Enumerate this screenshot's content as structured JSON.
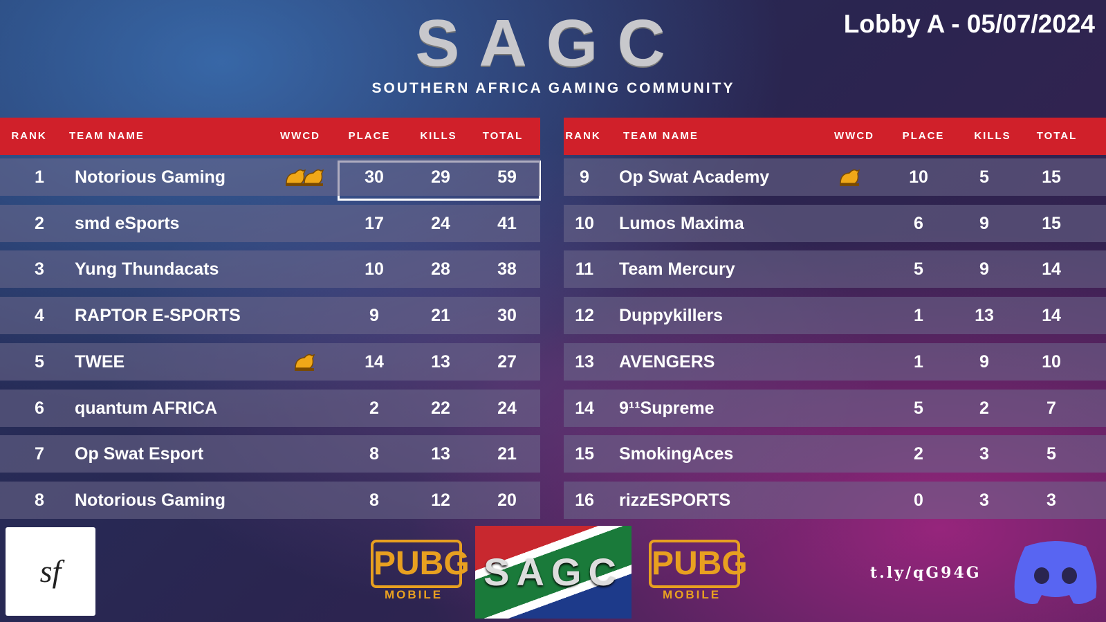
{
  "header": {
    "logo": "SAGC",
    "subtitle": "SOUTHERN AFRICA GAMING COMMUNITY",
    "lobby": "Lobby A - 05/07/2024"
  },
  "columns": [
    "RANK",
    "TEAM NAME",
    "WWCD",
    "PLACE",
    "KILLS",
    "TOTAL"
  ],
  "tables": [
    {
      "rows": [
        {
          "rank": 1,
          "team": "Notorious Gaming",
          "wwcd": 2,
          "place": 30,
          "kills": 29,
          "total": 59
        },
        {
          "rank": 2,
          "team": "smd eSports",
          "place": 17,
          "kills": 24,
          "total": 41
        },
        {
          "rank": 3,
          "team": "Yung Thundacats",
          "place": 10,
          "kills": 28,
          "total": 38
        },
        {
          "rank": 4,
          "team": "RAPTOR E-SPORTS",
          "place": 9,
          "kills": 21,
          "total": 30
        },
        {
          "rank": 5,
          "team": "TWEE",
          "wwcd": 1,
          "place": 14,
          "kills": 13,
          "total": 27
        },
        {
          "rank": 6,
          "team": "quantum AFRICA",
          "place": 2,
          "kills": 22,
          "total": 24
        },
        {
          "rank": 7,
          "team": "Op Swat Esport",
          "place": 8,
          "kills": 13,
          "total": 21
        },
        {
          "rank": 8,
          "team": "Notorious Gaming",
          "place": 8,
          "kills": 12,
          "total": 20
        }
      ]
    },
    {
      "rows": [
        {
          "rank": 9,
          "team": "Op Swat Academy",
          "wwcd": 1,
          "place": 10,
          "kills": 5,
          "total": 15
        },
        {
          "rank": 10,
          "team": "Lumos Maxima",
          "place": 6,
          "kills": 9,
          "total": 15
        },
        {
          "rank": 11,
          "team": "Team Mercury",
          "place": 5,
          "kills": 9,
          "total": 14
        },
        {
          "rank": 12,
          "team": "Duppykillers",
          "place": 1,
          "kills": 13,
          "total": 14
        },
        {
          "rank": 13,
          "team": "AVENGERS",
          "place": 1,
          "kills": 9,
          "total": 10
        },
        {
          "rank": 14,
          "team": "9¹¹Supreme",
          "place": 5,
          "kills": 2,
          "total": 7
        },
        {
          "rank": 15,
          "team": "SmokingAces",
          "place": 2,
          "kills": 3,
          "total": 5
        },
        {
          "rank": 16,
          "team": "rizzESPORTS",
          "place": 0,
          "kills": 3,
          "total": 3
        }
      ]
    }
  ],
  "footer": {
    "badge": "sf",
    "pubg": "PUBG",
    "mobile": "MOBILE",
    "logo": "SAGC",
    "link": "t.ly/qG94G"
  }
}
